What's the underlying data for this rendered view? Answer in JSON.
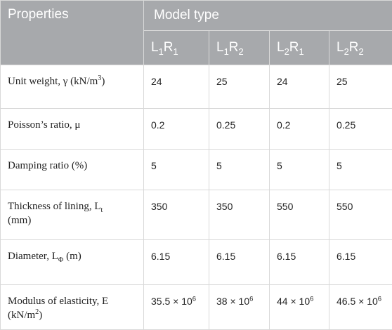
{
  "header": {
    "properties": "Properties",
    "model_type": "Model type",
    "models": [
      {
        "a": "L",
        "a_sub": "1",
        "b": "R",
        "b_sub": "1"
      },
      {
        "a": "L",
        "a_sub": "1",
        "b": "R",
        "b_sub": "2"
      },
      {
        "a": "L",
        "a_sub": "2",
        "b": "R",
        "b_sub": "1"
      },
      {
        "a": "L",
        "a_sub": "2",
        "b": "R",
        "b_sub": "2"
      }
    ]
  },
  "rows": [
    {
      "label": "Unit weight, γ (kN/m",
      "label_sup": "3",
      "label_tail": ")",
      "values": [
        "24",
        "25",
        "24",
        "25"
      ]
    },
    {
      "label": "Poisson’s ratio, μ",
      "values": [
        "0.2",
        "0.25",
        "0.2",
        "0.25"
      ]
    },
    {
      "label": "Damping ratio (%)",
      "values": [
        "5",
        "5",
        "5",
        "5"
      ]
    },
    {
      "label": "Thickness of lining, L",
      "label_sub": "t",
      "label_line2": "(mm)",
      "values": [
        "350",
        "350",
        "550",
        "550"
      ]
    },
    {
      "label": "Diameter, L",
      "label_sub": "Φ",
      "label_tail": " (m)",
      "values": [
        "6.15",
        "6.15",
        "6.15",
        "6.15"
      ]
    },
    {
      "label": "Modulus of elasticity, E",
      "label_line2": "(kN/m",
      "label_line2_sup": "2",
      "label_line2_tail": ")",
      "values": [
        {
          "base": "35.5 × 10",
          "exp": "6"
        },
        {
          "base": "38 × 10",
          "exp": "6"
        },
        {
          "base": "44 × 10",
          "exp": "6"
        },
        {
          "base": "46.5 × 10",
          "exp": "6"
        }
      ]
    }
  ]
}
